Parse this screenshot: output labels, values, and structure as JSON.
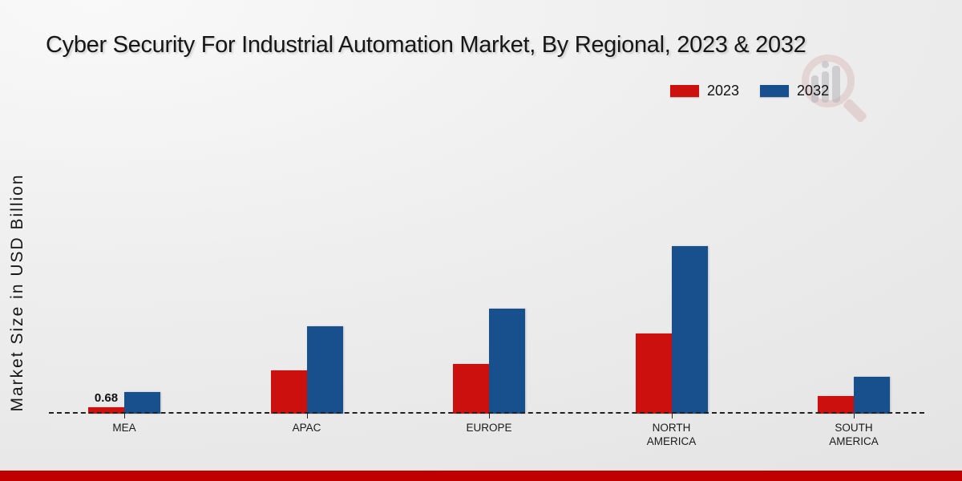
{
  "title": "Cyber Security For Industrial Automation Market, By Regional, 2023 & 2032",
  "y_axis_label": "Market Size in USD Billion",
  "colors": {
    "bar_2023": "#cc100e",
    "bar_2032": "#17508c",
    "footer_strip": "#c00000",
    "baseline": "#222222"
  },
  "chart_data": {
    "type": "bar",
    "categories": [
      "MEA",
      "APAC",
      "EUROPE",
      "NORTH AMERICA",
      "SOUTH AMERICA"
    ],
    "series": [
      {
        "name": "2023",
        "color": "#cc100e",
        "values": [
          0.68,
          4.3,
          5.0,
          8.0,
          1.8
        ]
      },
      {
        "name": "2032",
        "color": "#17508c",
        "values": [
          2.2,
          8.7,
          10.5,
          16.7,
          3.7
        ]
      }
    ],
    "annotations": [
      {
        "category": "MEA",
        "series": "2023",
        "text": "0.68"
      }
    ],
    "title": "Cyber Security For Industrial Automation Market, By Regional, 2023 & 2032",
    "xlabel": "",
    "ylabel": "Market Size in USD Billion",
    "ylim": [
      0,
      18
    ],
    "grid": false,
    "baseline_style": "dashed",
    "legend_position": "top-right"
  }
}
